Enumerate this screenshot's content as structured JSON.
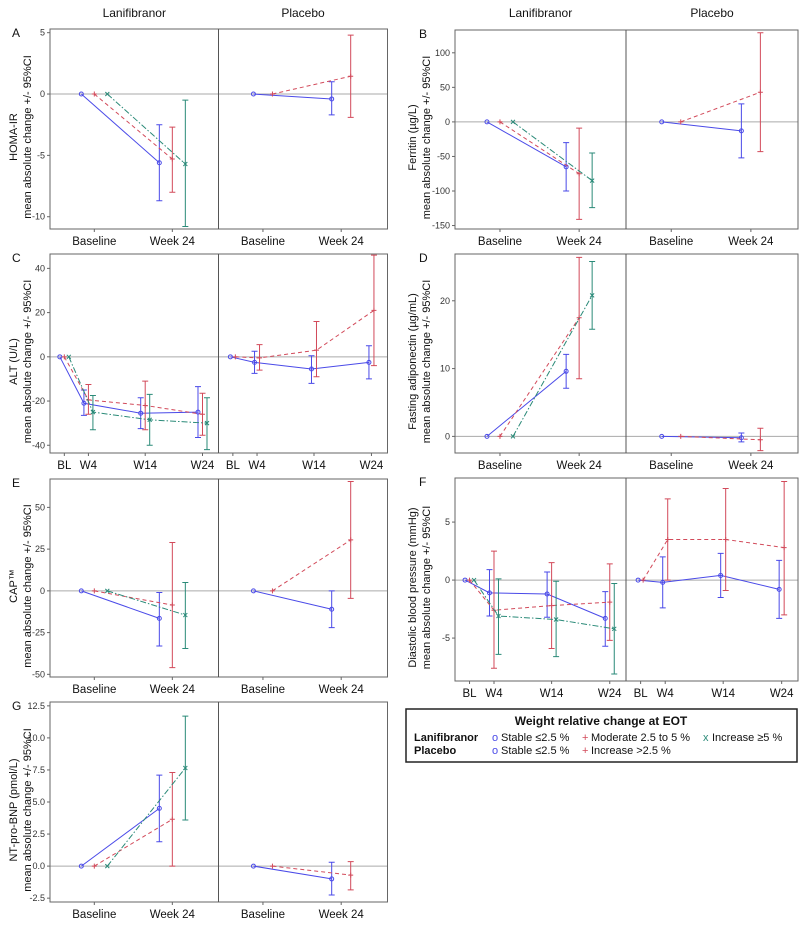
{
  "chart_data": {
    "type": "line",
    "group_titles": [
      "Lanifibranor",
      "Placebo"
    ],
    "colors": {
      "stable": "#4a4ae8",
      "moderate": "#d24a5a",
      "increase": "#2a8a78",
      "frame": "#666666",
      "zero": "#aaaaaa"
    },
    "legend": {
      "title": "Weight relative change at EOT",
      "rows": [
        {
          "label": "Lanifibranor",
          "items": [
            {
              "symbol": "o",
              "text": "Stable ≤2.5 %",
              "style": "stable"
            },
            {
              "symbol": "+",
              "text": "Moderate 2.5 to 5 %",
              "style": "moderate"
            },
            {
              "symbol": "x",
              "text": "Increase ≥5 %",
              "style": "increase"
            }
          ]
        },
        {
          "label": "Placebo",
          "items": [
            {
              "symbol": "o",
              "text": "Stable ≤2.5 %",
              "style": "stable"
            },
            {
              "symbol": "+",
              "text": "Increase >2.5 %",
              "style": "moderate"
            }
          ]
        }
      ]
    },
    "panels": [
      {
        "letter": "A",
        "ylabel": [
          "HOMA-IR",
          "mean absolute change +/- 95%CI"
        ],
        "ylim": [
          -11,
          5.3
        ],
        "yticks": [
          "5",
          "0",
          "-5",
          "-10"
        ],
        "x": [
          "Baseline",
          "Week 24"
        ],
        "treatments": [
          {
            "name": "Lanifibranor",
            "series": [
              {
                "style": "stable",
                "mean": [
                  0,
                  -5.6
                ],
                "lo": [
                  null,
                  -8.7
                ],
                "hi": [
                  null,
                  -2.5
                ]
              },
              {
                "style": "moderate",
                "mean": [
                  0,
                  -5.3
                ],
                "lo": [
                  null,
                  -8.0
                ],
                "hi": [
                  null,
                  -2.7
                ]
              },
              {
                "style": "increase",
                "mean": [
                  0,
                  -5.7
                ],
                "lo": [
                  null,
                  -10.8
                ],
                "hi": [
                  null,
                  -0.5
                ]
              }
            ]
          },
          {
            "name": "Placebo",
            "series": [
              {
                "style": "stable",
                "mean": [
                  0,
                  -0.4
                ],
                "lo": [
                  null,
                  -1.7
                ],
                "hi": [
                  null,
                  1.0
                ]
              },
              {
                "style": "moderate",
                "mean": [
                  0,
                  1.45
                ],
                "lo": [
                  null,
                  -1.9
                ],
                "hi": [
                  null,
                  4.8
                ]
              }
            ]
          }
        ]
      },
      {
        "letter": "B",
        "ylabel": [
          "Ferritin (µg/L)",
          "mean absolute change +/- 95%CI"
        ],
        "ylim": [
          -155,
          133
        ],
        "yticks": [
          "100",
          "50",
          "0",
          "-50",
          "-100",
          "-150"
        ],
        "x": [
          "Baseline",
          "Week 24"
        ],
        "treatments": [
          {
            "name": "Lanifibranor",
            "series": [
              {
                "style": "stable",
                "mean": [
                  0,
                  -65
                ],
                "lo": [
                  null,
                  -100
                ],
                "hi": [
                  null,
                  -30
                ]
              },
              {
                "style": "moderate",
                "mean": [
                  0,
                  -75
                ],
                "lo": [
                  null,
                  -141
                ],
                "hi": [
                  null,
                  -9
                ]
              },
              {
                "style": "increase",
                "mean": [
                  0,
                  -85
                ],
                "lo": [
                  null,
                  -124
                ],
                "hi": [
                  null,
                  -45
                ]
              }
            ]
          },
          {
            "name": "Placebo",
            "series": [
              {
                "style": "stable",
                "mean": [
                  0,
                  -13
                ],
                "lo": [
                  null,
                  -52
                ],
                "hi": [
                  null,
                  26
                ]
              },
              {
                "style": "moderate",
                "mean": [
                  0,
                  43
                ],
                "lo": [
                  null,
                  -43
                ],
                "hi": [
                  null,
                  129
                ]
              }
            ]
          }
        ]
      },
      {
        "letter": "C",
        "ylabel": [
          "ALT (U/L)",
          "mean absolute change +/- 95%CI"
        ],
        "ylim": [
          -43.5,
          46.5
        ],
        "yticks": [
          "40",
          "20",
          "0",
          "-20",
          "-40"
        ],
        "x": [
          "BL",
          "W4",
          "W14",
          "W24"
        ],
        "treatments": [
          {
            "name": "Lanifibranor",
            "series": [
              {
                "style": "stable",
                "mean": [
                  0,
                  -21,
                  -25.5,
                  -25
                ],
                "lo": [
                  null,
                  -26.5,
                  -32.5,
                  -36.5
                ],
                "hi": [
                  null,
                  -15,
                  -18.5,
                  -13.5
                ]
              },
              {
                "style": "moderate",
                "mean": [
                  0,
                  -19.5,
                  -22,
                  -26
                ],
                "lo": [
                  null,
                  -26,
                  -33,
                  -35.5
                ],
                "hi": [
                  null,
                  -12.5,
                  -11,
                  -16.5
                ]
              },
              {
                "style": "increase",
                "mean": [
                  0,
                  -25,
                  -28.5,
                  -30
                ],
                "lo": [
                  null,
                  -33,
                  -40,
                  -42
                ],
                "hi": [
                  null,
                  -17.5,
                  -17,
                  -18.5
                ]
              }
            ]
          },
          {
            "name": "Placebo",
            "series": [
              {
                "style": "stable",
                "mean": [
                  0,
                  -2.5,
                  -5.5,
                  -2.5
                ],
                "lo": [
                  null,
                  -7.5,
                  -12,
                  -10
                ],
                "hi": [
                  null,
                  2.5,
                  0.5,
                  5
                ]
              },
              {
                "style": "moderate",
                "mean": [
                  0,
                  -0.5,
                  3,
                  21
                ],
                "lo": [
                  null,
                  -6,
                  -9,
                  -4
                ],
                "hi": [
                  null,
                  5.5,
                  16,
                  46
                ]
              }
            ]
          }
        ]
      },
      {
        "letter": "D",
        "ylabel": [
          "Fasting adiponectin (µg/mL)",
          "mean absolute change +/- 95%CI"
        ],
        "ylim": [
          -2.45,
          26.9
        ],
        "yticks": [
          "20",
          "10",
          "0"
        ],
        "x": [
          "Baseline",
          "Week 24"
        ],
        "treatments": [
          {
            "name": "Lanifibranor",
            "series": [
              {
                "style": "stable",
                "mean": [
                  0,
                  9.6
                ],
                "lo": [
                  null,
                  7.1
                ],
                "hi": [
                  null,
                  12.1
                ]
              },
              {
                "style": "moderate",
                "mean": [
                  0,
                  17.5
                ],
                "lo": [
                  null,
                  8.5
                ],
                "hi": [
                  null,
                  26.4
                ]
              },
              {
                "style": "increase",
                "mean": [
                  0,
                  20.8
                ],
                "lo": [
                  null,
                  15.8
                ],
                "hi": [
                  null,
                  25.8
                ]
              }
            ]
          },
          {
            "name": "Placebo",
            "series": [
              {
                "style": "stable",
                "mean": [
                  0,
                  -0.2
                ],
                "lo": [
                  null,
                  -0.8
                ],
                "hi": [
                  null,
                  0.5
                ]
              },
              {
                "style": "moderate",
                "mean": [
                  0,
                  -0.5
                ],
                "lo": [
                  null,
                  -2.1
                ],
                "hi": [
                  null,
                  1.2
                ]
              }
            ]
          }
        ]
      },
      {
        "letter": "E",
        "ylabel": [
          "CAP™",
          "mean absolute change +/- 95%CI"
        ],
        "ylim": [
          -51.6,
          67
        ],
        "yticks": [
          "50",
          "25",
          "0",
          "-25",
          "-50"
        ],
        "x": [
          "Baseline",
          "Week 24"
        ],
        "treatments": [
          {
            "name": "Lanifibranor",
            "series": [
              {
                "style": "stable",
                "mean": [
                  0,
                  -16.5
                ],
                "lo": [
                  null,
                  -33
                ],
                "hi": [
                  null,
                  -1
                ]
              },
              {
                "style": "moderate",
                "mean": [
                  0,
                  -8.5
                ],
                "lo": [
                  null,
                  -46
                ],
                "hi": [
                  null,
                  29
                ]
              },
              {
                "style": "increase",
                "mean": [
                  0,
                  -14.5
                ],
                "lo": [
                  null,
                  -34.5
                ],
                "hi": [
                  null,
                  5
                ]
              }
            ]
          },
          {
            "name": "Placebo",
            "series": [
              {
                "style": "stable",
                "mean": [
                  0,
                  -11
                ],
                "lo": [
                  null,
                  -22
                ],
                "hi": [
                  null,
                  0
                ]
              },
              {
                "style": "moderate",
                "mean": [
                  0,
                  30.5
                ],
                "lo": [
                  null,
                  -4.5
                ],
                "hi": [
                  null,
                  65.5
                ]
              }
            ]
          }
        ]
      },
      {
        "letter": "F",
        "ylabel": [
          "Diastolic blood pressure (mmHg)",
          "mean absolute change +/- 95%CI"
        ],
        "ylim": [
          -8.7,
          8.8
        ],
        "yticks": [
          "5",
          "0",
          "-5"
        ],
        "x": [
          "BL",
          "W4",
          "W14",
          "W24"
        ],
        "treatments": [
          {
            "name": "Lanifibranor",
            "series": [
              {
                "style": "stable",
                "mean": [
                  0,
                  -1.1,
                  -1.2,
                  -3.3
                ],
                "lo": [
                  null,
                  -3.1,
                  -3.2,
                  -5.7
                ],
                "hi": [
                  null,
                  0.9,
                  0.7,
                  -1.0
                ]
              },
              {
                "style": "moderate",
                "mean": [
                  0,
                  -2.6,
                  -2.2,
                  -1.9
                ],
                "lo": [
                  null,
                  -7.6,
                  -5.9,
                  -5.2
                ],
                "hi": [
                  null,
                  2.5,
                  1.5,
                  1.4
                ]
              },
              {
                "style": "increase",
                "mean": [
                  0,
                  -3.1,
                  -3.4,
                  -4.2
                ],
                "lo": [
                  null,
                  -6.4,
                  -6.6,
                  -8.1
                ],
                "hi": [
                  null,
                  0.1,
                  -0.1,
                  -0.3
                ]
              }
            ]
          },
          {
            "name": "Placebo",
            "series": [
              {
                "style": "stable",
                "mean": [
                  0,
                  -0.2,
                  0.4,
                  -0.8
                ],
                "lo": [
                  null,
                  -2.4,
                  -1.5,
                  -3.3
                ],
                "hi": [
                  null,
                  2.0,
                  2.3,
                  1.7
                ]
              },
              {
                "style": "moderate",
                "mean": [
                  0,
                  3.5,
                  3.5,
                  2.8
                ],
                "lo": [
                  null,
                  0,
                  -0.9,
                  -3.0
                ],
                "hi": [
                  null,
                  7.0,
                  7.9,
                  8.5
                ]
              }
            ]
          }
        ]
      },
      {
        "letter": "G",
        "ylabel": [
          "NT-pro-BNP (pmol/L)",
          "mean absolute change +/- 95%CI"
        ],
        "ylim": [
          -2.8,
          12.8
        ],
        "yticks": [
          "12.5",
          "10.0",
          "7.5",
          "5.0",
          "2.5",
          "0.0",
          "-2.5"
        ],
        "x": [
          "Baseline",
          "Week 24"
        ],
        "treatments": [
          {
            "name": "Lanifibranor",
            "series": [
              {
                "style": "stable",
                "mean": [
                  0,
                  4.5
                ],
                "lo": [
                  null,
                  1.9
                ],
                "hi": [
                  null,
                  7.1
                ]
              },
              {
                "style": "moderate",
                "mean": [
                  0,
                  3.65
                ],
                "lo": [
                  null,
                  0
                ],
                "hi": [
                  null,
                  7.3
                ]
              },
              {
                "style": "increase",
                "mean": [
                  0,
                  7.65
                ],
                "lo": [
                  null,
                  3.6
                ],
                "hi": [
                  null,
                  11.7
                ]
              }
            ]
          },
          {
            "name": "Placebo",
            "series": [
              {
                "style": "stable",
                "mean": [
                  0,
                  -1.0
                ],
                "lo": [
                  null,
                  -2.25
                ],
                "hi": [
                  null,
                  0.3
                ]
              },
              {
                "style": "moderate",
                "mean": [
                  0,
                  -0.7
                ],
                "lo": [
                  null,
                  -1.85
                ],
                "hi": [
                  null,
                  0.35
                ]
              }
            ]
          }
        ]
      }
    ]
  }
}
